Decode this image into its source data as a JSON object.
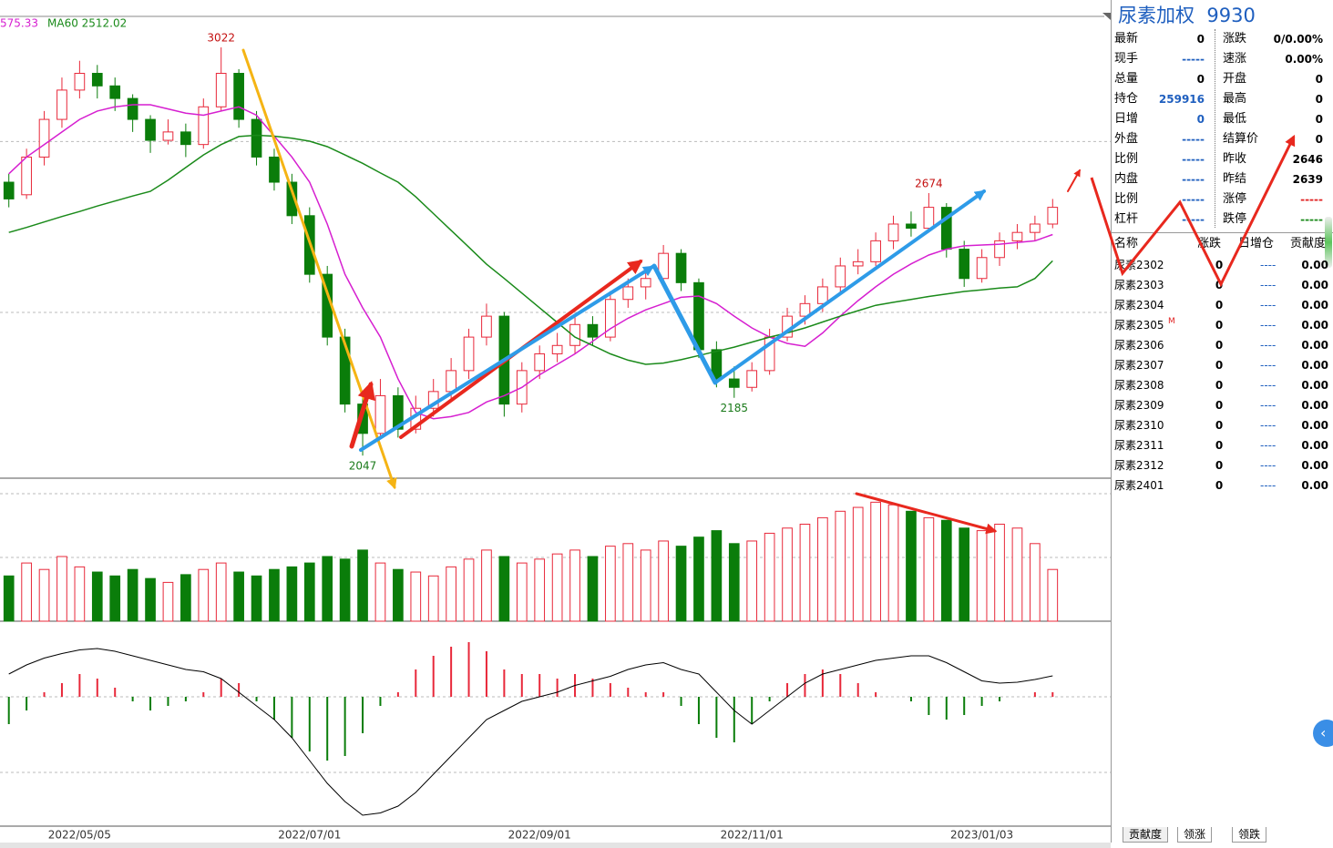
{
  "chart_data": [
    {
      "type": "candlestick",
      "categories": [
        null,
        null,
        null,
        null,
        "2022/05/05",
        null,
        null,
        null,
        null,
        null,
        null,
        null,
        null,
        null,
        null,
        null,
        null,
        "2022/07/01",
        null,
        null,
        null,
        null,
        null,
        null,
        null,
        null,
        null,
        null,
        null,
        null,
        "2022/09/01",
        null,
        null,
        null,
        null,
        null,
        null,
        null,
        null,
        null,
        null,
        null,
        "2022/11/01",
        null,
        null,
        null,
        null,
        null,
        null,
        null,
        null,
        null,
        null,
        null,
        null,
        "2023/01/03",
        null,
        null,
        null,
        null
      ],
      "candles": [
        [
          2700,
          2720,
          2640,
          2660
        ],
        [
          2670,
          2780,
          2660,
          2760
        ],
        [
          2760,
          2870,
          2740,
          2850
        ],
        [
          2850,
          2950,
          2830,
          2920
        ],
        [
          2920,
          2990,
          2900,
          2960
        ],
        [
          2960,
          2980,
          2900,
          2930
        ],
        [
          2930,
          2950,
          2870,
          2900
        ],
        [
          2900,
          2910,
          2820,
          2850
        ],
        [
          2850,
          2860,
          2770,
          2800
        ],
        [
          2800,
          2850,
          2790,
          2820
        ],
        [
          2820,
          2840,
          2760,
          2790
        ],
        [
          2790,
          2900,
          2780,
          2880
        ],
        [
          2880,
          3022,
          2870,
          2960
        ],
        [
          2960,
          2970,
          2830,
          2850
        ],
        [
          2850,
          2870,
          2740,
          2760
        ],
        [
          2760,
          2780,
          2680,
          2700
        ],
        [
          2700,
          2720,
          2600,
          2620
        ],
        [
          2620,
          2640,
          2460,
          2480
        ],
        [
          2480,
          2500,
          2310,
          2330
        ],
        [
          2330,
          2350,
          2150,
          2170
        ],
        [
          2170,
          2190,
          2047,
          2100
        ],
        [
          2100,
          2230,
          2090,
          2190
        ],
        [
          2190,
          2210,
          2090,
          2110
        ],
        [
          2110,
          2190,
          2100,
          2160
        ],
        [
          2160,
          2230,
          2140,
          2200
        ],
        [
          2200,
          2280,
          2180,
          2250
        ],
        [
          2250,
          2350,
          2230,
          2330
        ],
        [
          2330,
          2410,
          2310,
          2380
        ],
        [
          2380,
          2390,
          2140,
          2170
        ],
        [
          2170,
          2270,
          2150,
          2250
        ],
        [
          2250,
          2310,
          2230,
          2290
        ],
        [
          2290,
          2340,
          2270,
          2310
        ],
        [
          2310,
          2380,
          2290,
          2360
        ],
        [
          2360,
          2380,
          2310,
          2330
        ],
        [
          2330,
          2440,
          2320,
          2420
        ],
        [
          2420,
          2470,
          2400,
          2450
        ],
        [
          2450,
          2490,
          2420,
          2470
        ],
        [
          2470,
          2550,
          2450,
          2530
        ],
        [
          2530,
          2540,
          2440,
          2460
        ],
        [
          2460,
          2470,
          2280,
          2300
        ],
        [
          2300,
          2320,
          2210,
          2230
        ],
        [
          2230,
          2260,
          2185,
          2210
        ],
        [
          2210,
          2270,
          2200,
          2250
        ],
        [
          2250,
          2350,
          2240,
          2330
        ],
        [
          2330,
          2400,
          2320,
          2380
        ],
        [
          2380,
          2430,
          2360,
          2410
        ],
        [
          2410,
          2470,
          2390,
          2450
        ],
        [
          2450,
          2520,
          2430,
          2500
        ],
        [
          2500,
          2540,
          2480,
          2510
        ],
        [
          2510,
          2580,
          2500,
          2560
        ],
        [
          2560,
          2620,
          2540,
          2600
        ],
        [
          2600,
          2630,
          2570,
          2590
        ],
        [
          2590,
          2674,
          2580,
          2640
        ],
        [
          2640,
          2650,
          2520,
          2540
        ],
        [
          2540,
          2560,
          2450,
          2470
        ],
        [
          2470,
          2540,
          2460,
          2520
        ],
        [
          2520,
          2580,
          2500,
          2560
        ],
        [
          2560,
          2600,
          2540,
          2580
        ],
        [
          2580,
          2620,
          2560,
          2600
        ],
        [
          2600,
          2660,
          2590,
          2640
        ]
      ],
      "up_color": "#e8283a",
      "down_color": "#0a7d0a",
      "ylim": [
        1993,
        3096
      ],
      "yticks": [
        2797,
        2389
      ],
      "grid": true,
      "series": [
        {
          "name": "575.33",
          "color": "#d61fd0",
          "values": [
            2720,
            2760,
            2790,
            2820,
            2850,
            2870,
            2880,
            2885,
            2885,
            2875,
            2865,
            2860,
            2870,
            2880,
            2860,
            2810,
            2760,
            2700,
            2600,
            2480,
            2400,
            2330,
            2230,
            2150,
            2135,
            2140,
            2150,
            2175,
            2190,
            2210,
            2240,
            2265,
            2290,
            2320,
            2350,
            2375,
            2395,
            2410,
            2425,
            2428,
            2410,
            2380,
            2352,
            2330,
            2315,
            2308,
            2340,
            2380,
            2417,
            2450,
            2480,
            2505,
            2526,
            2540,
            2548,
            2550,
            2552,
            2556,
            2560,
            2575
          ]
        },
        {
          "name": "MA60 2512.02",
          "color": "#1a8a1a",
          "values": [
            2580,
            2592,
            2605,
            2618,
            2630,
            2643,
            2655,
            2667,
            2678,
            2705,
            2735,
            2765,
            2790,
            2809,
            2812,
            2810,
            2805,
            2798,
            2785,
            2765,
            2745,
            2722,
            2700,
            2665,
            2625,
            2585,
            2545,
            2504,
            2470,
            2435,
            2400,
            2365,
            2330,
            2310,
            2290,
            2275,
            2265,
            2268,
            2276,
            2286,
            2296,
            2306,
            2318,
            2330,
            2340,
            2352,
            2366,
            2380,
            2393,
            2406,
            2413,
            2420,
            2427,
            2433,
            2439,
            2443,
            2447,
            2450,
            2470,
            2512
          ]
        }
      ],
      "annotations": [
        3022,
        2047,
        2185,
        2674
      ]
    },
    {
      "type": "volume",
      "ylim": [
        0,
        100
      ],
      "values": [
        35,
        45,
        40,
        50,
        42,
        38,
        35,
        40,
        33,
        30,
        36,
        40,
        45,
        38,
        35,
        40,
        42,
        45,
        50,
        48,
        55,
        45,
        40,
        38,
        35,
        42,
        48,
        55,
        50,
        45,
        48,
        52,
        55,
        50,
        58,
        60,
        55,
        62,
        58,
        65,
        70,
        60,
        62,
        68,
        72,
        75,
        80,
        85,
        88,
        92,
        90,
        85,
        80,
        78,
        72,
        70,
        75,
        72,
        60,
        40
      ]
    },
    {
      "type": "macd",
      "ylim": [
        -2.8,
        1.5
      ],
      "up_color": "#e8283a",
      "down_color": "#0a7d0a",
      "values": [
        -0.6,
        -0.3,
        0.1,
        0.3,
        0.5,
        0.4,
        0.2,
        -0.1,
        -0.3,
        -0.2,
        -0.1,
        0.1,
        0.4,
        0.3,
        -0.1,
        -0.5,
        -0.9,
        -1.2,
        -1.4,
        -1.3,
        -0.8,
        -0.2,
        0.1,
        0.6,
        0.9,
        1.1,
        1.2,
        1.0,
        0.6,
        0.5,
        0.5,
        0.4,
        0.5,
        0.4,
        0.3,
        0.2,
        0.1,
        0.1,
        -0.2,
        -0.6,
        -0.9,
        -1.0,
        -0.6,
        -0.1,
        0.3,
        0.5,
        0.6,
        0.5,
        0.3,
        0.1,
        0.0,
        -0.1,
        -0.4,
        -0.5,
        -0.4,
        -0.2,
        -0.1,
        0.0,
        0.1,
        0.1
      ],
      "series": [
        {
          "color": "#000000",
          "values": [
            0.5,
            0.7,
            0.85,
            0.95,
            1.03,
            1.06,
            1.0,
            0.9,
            0.8,
            0.7,
            0.6,
            0.55,
            0.4,
            0.1,
            -0.2,
            -0.5,
            -0.9,
            -1.4,
            -1.9,
            -2.3,
            -2.6,
            -2.55,
            -2.4,
            -2.1,
            -1.7,
            -1.3,
            -0.9,
            -0.5,
            -0.3,
            -0.1,
            0.0,
            0.1,
            0.25,
            0.35,
            0.45,
            0.6,
            0.7,
            0.75,
            0.6,
            0.5,
            0.1,
            -0.3,
            -0.6,
            -0.3,
            0.0,
            0.3,
            0.5,
            0.6,
            0.7,
            0.8,
            0.85,
            0.9,
            0.9,
            0.75,
            0.55,
            0.35,
            0.3,
            0.32,
            0.38,
            0.46
          ]
        }
      ]
    }
  ],
  "quote": {
    "name": "尿素加权",
    "code": "9930",
    "left": [
      {
        "label": "最新",
        "value": 0
      },
      {
        "label": "现手",
        "value": "-----",
        "color": "#1f5fbf"
      },
      {
        "label": "总量",
        "value": 0
      },
      {
        "label": "持仓",
        "value": 259916,
        "color": "#1f5fbf"
      },
      {
        "label": "日增",
        "value": 0,
        "color": "#1f5fbf"
      },
      {
        "label": "外盘",
        "value": "-----",
        "color": "#1f5fbf"
      },
      {
        "label": "比例",
        "value": "-----",
        "color": "#1f5fbf"
      },
      {
        "label": "内盘",
        "value": "-----",
        "color": "#1f5fbf"
      },
      {
        "label": "比例",
        "value": "-----",
        "color": "#1f5fbf"
      },
      {
        "label": "杠杆",
        "value": "-----",
        "color": "#1f5fbf"
      }
    ],
    "right": [
      {
        "label": "涨跌",
        "value": "0/0.00%"
      },
      {
        "label": "速涨",
        "value": "0.00%"
      },
      {
        "label": "开盘",
        "value": 0
      },
      {
        "label": "最高",
        "value": 0
      },
      {
        "label": "最低",
        "value": 0
      },
      {
        "label": "结算价",
        "value": 0
      },
      {
        "label": "昨收",
        "value": 2646
      },
      {
        "label": "昨结",
        "value": 2639
      },
      {
        "label": "涨停",
        "value": "-----",
        "color": "#e02020"
      },
      {
        "label": "跌停",
        "value": "-----",
        "color": "#1a8a1a"
      }
    ]
  },
  "contracts": {
    "header": [
      "名称",
      "涨跌",
      "日增仓",
      "贡献度"
    ],
    "rows": [
      {
        "name": "尿素2302",
        "change": 0,
        "oi": "----",
        "contribution": "0.00"
      },
      {
        "name": "尿素2303",
        "change": 0,
        "oi": "----",
        "contribution": "0.00"
      },
      {
        "name": "尿素2304",
        "change": 0,
        "oi": "----",
        "contribution": "0.00"
      },
      {
        "name": "尿素2305",
        "flag": "M",
        "change": 0,
        "oi": "----",
        "contribution": "0.00"
      },
      {
        "name": "尿素2306",
        "change": 0,
        "oi": "----",
        "contribution": "0.00"
      },
      {
        "name": "尿素2307",
        "change": 0,
        "oi": "----",
        "contribution": "0.00"
      },
      {
        "name": "尿素2308",
        "change": 0,
        "oi": "----",
        "contribution": "0.00"
      },
      {
        "name": "尿素2309",
        "change": 0,
        "oi": "----",
        "contribution": "0.00"
      },
      {
        "name": "尿素2310",
        "change": 0,
        "oi": "----",
        "contribution": "0.00"
      },
      {
        "name": "尿素2311",
        "change": 0,
        "oi": "----",
        "contribution": "0.00"
      },
      {
        "name": "尿素2312",
        "change": 0,
        "oi": "----",
        "contribution": "0.00"
      },
      {
        "name": "尿素2401",
        "change": 0,
        "oi": "----",
        "contribution": "0.00"
      }
    ]
  },
  "tabs": [
    "贡献度",
    "领涨",
    "领跌"
  ]
}
